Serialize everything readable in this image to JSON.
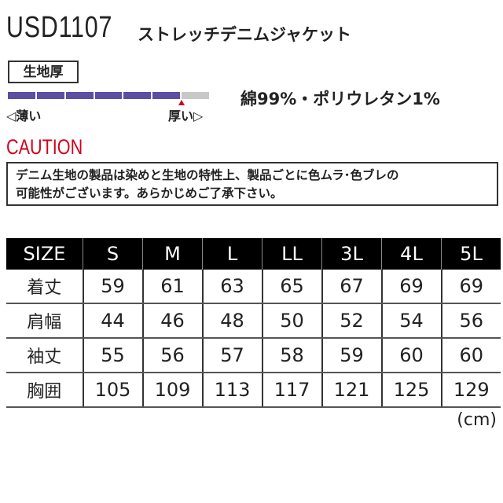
{
  "product": {
    "code": "USD1107",
    "name": "ストレッチデニムジャケット"
  },
  "fabric": {
    "label": "生地厚",
    "thin": "◁薄い",
    "thick": "厚い▷",
    "level": 6,
    "max": 7,
    "fill_color": "#5b4ea3",
    "empty_color": "#c8c8c8",
    "marker_color": "#d0021b"
  },
  "material": "綿99%・ポリウレタン1%",
  "caution": {
    "title": "CAUTION",
    "lines": [
      "デニム生地の製品は染めと生地の特性上、製品ごとに色ムラ･色ブレの",
      "可能性がございます。あらかじめご了承下さい。"
    ]
  },
  "size_table": {
    "headers": [
      "SIZE",
      "S",
      "M",
      "L",
      "LL",
      "3L",
      "4L",
      "5L"
    ],
    "rows": [
      [
        "着丈",
        "59",
        "61",
        "63",
        "65",
        "67",
        "69",
        "69"
      ],
      [
        "肩幅",
        "44",
        "46",
        "48",
        "50",
        "52",
        "54",
        "56"
      ],
      [
        "袖丈",
        "55",
        "56",
        "57",
        "58",
        "59",
        "60",
        "60"
      ],
      [
        "胸囲",
        "105",
        "109",
        "113",
        "117",
        "121",
        "125",
        "129"
      ]
    ],
    "unit": "(cm)"
  }
}
